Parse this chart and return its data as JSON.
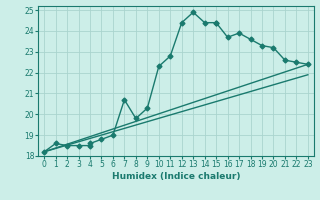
{
  "xlabel": "Humidex (Indice chaleur)",
  "ylabel": "",
  "xlim": [
    -0.5,
    23.5
  ],
  "ylim": [
    18,
    25.2
  ],
  "xticks": [
    0,
    1,
    2,
    3,
    4,
    5,
    6,
    7,
    8,
    9,
    10,
    11,
    12,
    13,
    14,
    15,
    16,
    17,
    18,
    19,
    20,
    21,
    22,
    23
  ],
  "yticks": [
    18,
    19,
    20,
    21,
    22,
    23,
    24,
    25
  ],
  "background_color": "#cceee8",
  "grid_color": "#aad4ce",
  "line_color": "#1a7a6e",
  "line1_x": [
    0,
    1,
    2,
    3,
    4,
    4,
    5,
    6,
    7,
    8,
    9,
    10,
    11,
    12,
    13,
    14,
    15,
    15,
    16,
    17,
    18,
    19,
    20,
    21,
    22,
    23
  ],
  "line1_y": [
    18.2,
    18.6,
    18.5,
    18.5,
    18.5,
    18.6,
    18.8,
    19.0,
    20.7,
    19.8,
    20.3,
    22.3,
    22.8,
    24.4,
    24.9,
    24.4,
    24.4,
    24.4,
    23.7,
    23.9,
    23.6,
    23.3,
    23.2,
    22.6,
    22.5,
    22.4
  ],
  "line2_x": [
    0,
    23
  ],
  "line2_y": [
    18.2,
    22.4
  ],
  "line3_x": [
    0,
    23
  ],
  "line3_y": [
    18.2,
    21.9
  ],
  "marker": "D",
  "markersize": 2.5,
  "linewidth": 1.0
}
